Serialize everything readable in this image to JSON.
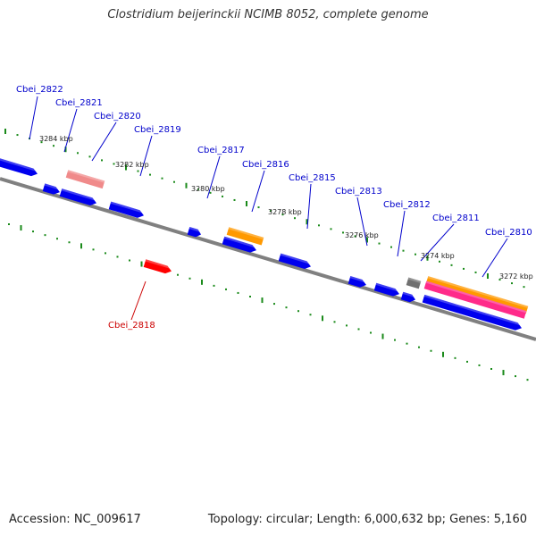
{
  "title": "Clostridium beijerinckii NCIMB 8052, complete genome",
  "footer": {
    "accession": "Accession: NC_009617",
    "summary": "Topology: circular; Length: 6,000,632 bp; Genes: 5,160"
  },
  "colors": {
    "backbone": "#808080",
    "tick": "#1a8a1a",
    "gene_forward": "#0000ee",
    "gene_highlight": "#ff0000",
    "label_blue": "#0000cc",
    "label_red": "#cc0000",
    "orange": "#ff9900",
    "pink": "#ff2a8a",
    "salmon": "#f08a8a",
    "grey": "#707070"
  },
  "kbp_labels": [
    "3284 kbp",
    "3282 kbp",
    "3280 kbp",
    "3278 kbp",
    "3276 kbp",
    "3274 kbp",
    "3272 kbp"
  ],
  "gene_labels": [
    {
      "text": "Cbei_2822",
      "color": "label_blue"
    },
    {
      "text": "Cbei_2821",
      "color": "label_blue"
    },
    {
      "text": "Cbei_2820",
      "color": "label_blue"
    },
    {
      "text": "Cbei_2819",
      "color": "label_blue"
    },
    {
      "text": "Cbei_2817",
      "color": "label_blue"
    },
    {
      "text": "Cbei_2816",
      "color": "label_blue"
    },
    {
      "text": "Cbei_2815",
      "color": "label_blue"
    },
    {
      "text": "Cbei_2813",
      "color": "label_blue"
    },
    {
      "text": "Cbei_2812",
      "color": "label_blue"
    },
    {
      "text": "Cbei_2811",
      "color": "label_blue"
    },
    {
      "text": "Cbei_2810",
      "color": "label_blue"
    },
    {
      "text": "Cbei_2818",
      "color": "label_red"
    }
  ]
}
